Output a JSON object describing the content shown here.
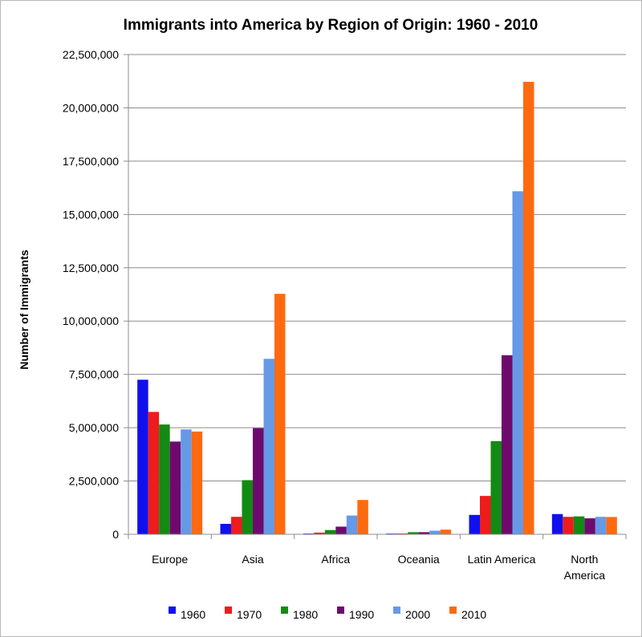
{
  "chart_data": {
    "type": "bar",
    "title": "Immigrants into America by Region of Origin: 1960 - 2010",
    "ylabel": "Number of Immigrants",
    "xlabel": "",
    "ylim": [
      0,
      22500000
    ],
    "yticks": [
      0,
      2500000,
      5000000,
      7500000,
      10000000,
      12500000,
      15000000,
      17500000,
      20000000,
      22500000
    ],
    "ytick_labels": [
      "0",
      "2,500,000",
      "5,000,000",
      "7,500,000",
      "10,000,000",
      "12,500,000",
      "15,000,000",
      "17,500,000",
      "20,000,000",
      "22,500,000"
    ],
    "grid": true,
    "legend_position": "bottom",
    "categories": [
      [
        "Europe"
      ],
      [
        "Asia"
      ],
      [
        "Africa"
      ],
      [
        "Oceania"
      ],
      [
        "Latin America"
      ],
      [
        "North",
        "America"
      ]
    ],
    "series": [
      {
        "name": "1960",
        "color": "#1010ee",
        "values": [
          7250000,
          490000,
          35000,
          35000,
          910000,
          950000
        ]
      },
      {
        "name": "1970",
        "color": "#ee1c1c",
        "values": [
          5740000,
          820000,
          80000,
          40000,
          1800000,
          820000
        ]
      },
      {
        "name": "1980",
        "color": "#138a13",
        "values": [
          5150000,
          2540000,
          200000,
          100000,
          4370000,
          840000
        ]
      },
      {
        "name": "1990",
        "color": "#6e0a6e",
        "values": [
          4350000,
          4980000,
          360000,
          100000,
          8400000,
          750000
        ]
      },
      {
        "name": "2000",
        "color": "#6699e6",
        "values": [
          4920000,
          8230000,
          880000,
          170000,
          16090000,
          820000
        ]
      },
      {
        "name": "2010",
        "color": "#ff6a10",
        "values": [
          4820000,
          11280000,
          1610000,
          220000,
          21220000,
          810000
        ]
      }
    ]
  }
}
